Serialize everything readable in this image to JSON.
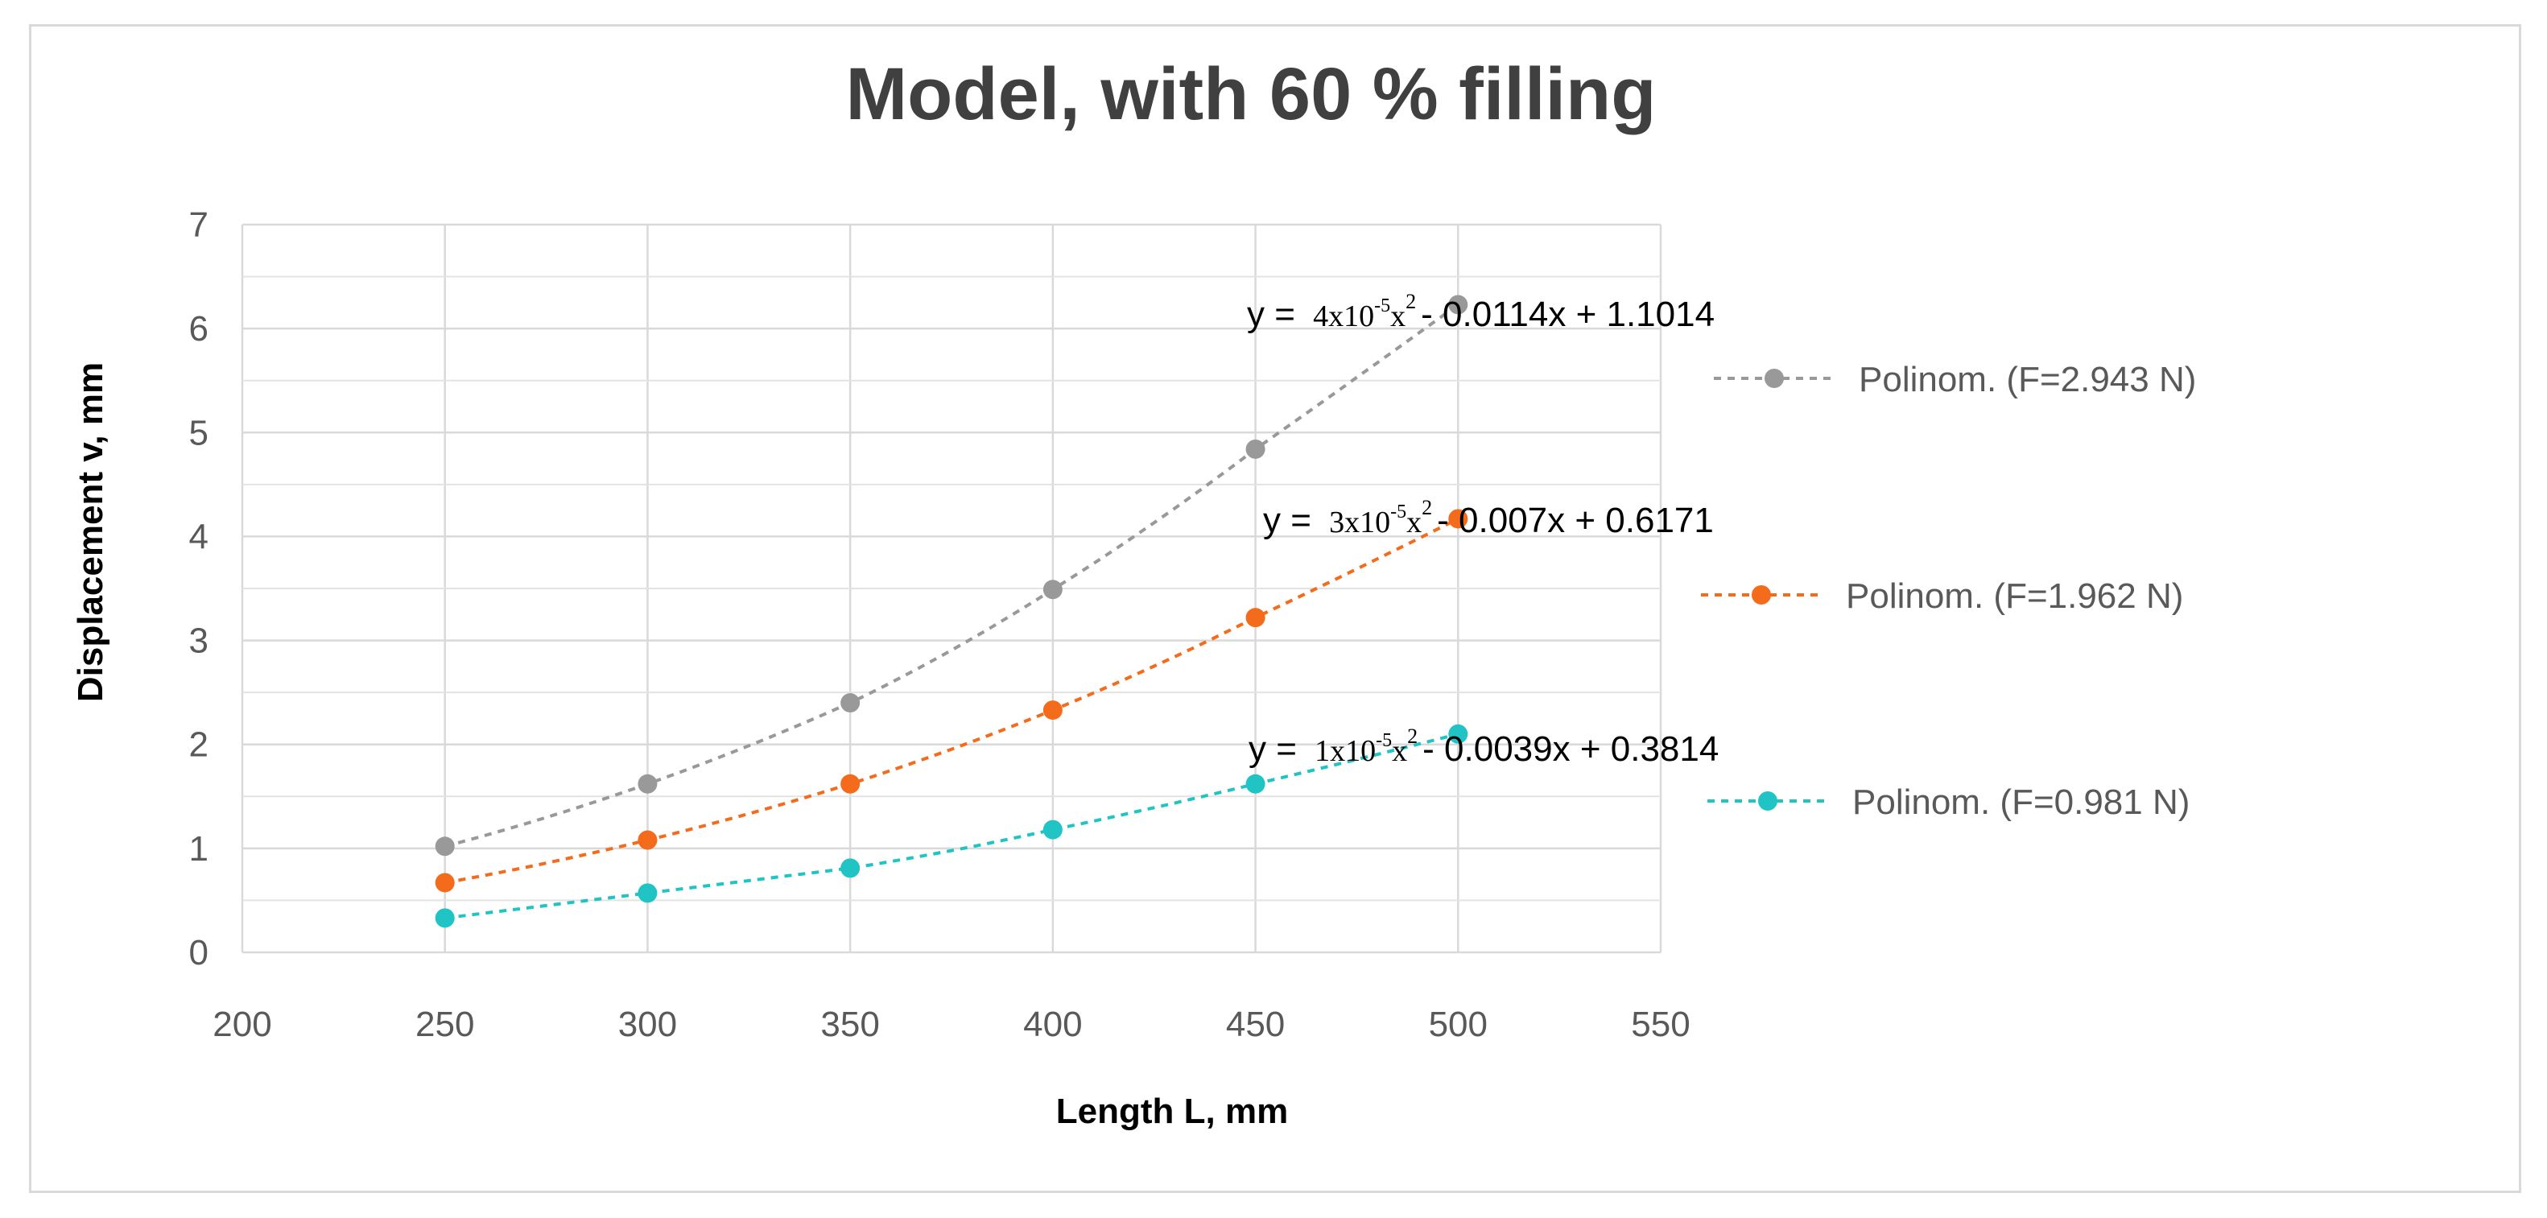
{
  "chart_data": {
    "type": "scatter",
    "title": "Model, with 60 % filling",
    "xlabel": "Length L, mm",
    "ylabel": "Displacement v, mm",
    "xlim": [
      200,
      550
    ],
    "ylim": [
      0,
      7
    ],
    "x_ticks": [
      200,
      250,
      300,
      350,
      400,
      450,
      500,
      550
    ],
    "y_ticks": [
      0,
      1,
      2,
      3,
      4,
      5,
      6,
      7
    ],
    "grid": true,
    "minor_y_grid": true,
    "legend_position": "right",
    "series": [
      {
        "name": "Polinom. (F=2.943 N)",
        "color": "#999999",
        "trendline": "polynomial-2, dotted",
        "x": [
          250,
          300,
          350,
          400,
          450,
          500
        ],
        "y": [
          1.02,
          1.62,
          2.4,
          3.49,
          4.84,
          6.23
        ],
        "fit": {
          "a": 4e-05,
          "b": -0.0114,
          "c": 1.1014
        },
        "equation": {
          "prefix": "y = ",
          "coef": "4x10",
          "exp": "-5",
          "var": "x",
          "var_exp": "2",
          "rest": "- 0.0114x + 1.1014"
        }
      },
      {
        "name": "Polinom. (F=1.962 N)",
        "color": "#f46b1b",
        "trendline": "polynomial-2, dotted",
        "x": [
          250,
          300,
          350,
          400,
          450,
          500
        ],
        "y": [
          0.67,
          1.08,
          1.62,
          2.33,
          3.22,
          4.17
        ],
        "fit": {
          "a": 3e-05,
          "b": -0.007,
          "c": 0.6171
        },
        "equation": {
          "prefix": "y = ",
          "coef": "3x10",
          "exp": "-5",
          "var": "x",
          "var_exp": "2",
          "rest": "- 0.007x + 0.6171"
        }
      },
      {
        "name": "Polinom. (F=0.981 N)",
        "color": "#21c4c4",
        "trendline": "polynomial-2, dotted",
        "x": [
          250,
          300,
          350,
          400,
          450,
          500
        ],
        "y": [
          0.33,
          0.57,
          0.81,
          1.18,
          1.62,
          2.1
        ],
        "fit": {
          "a": 1e-05,
          "b": -0.0039,
          "c": 0.3814
        },
        "equation": {
          "prefix": "y = ",
          "coef": "1x10",
          "exp": "-5",
          "var": "x",
          "var_exp": "2",
          "rest": "- 0.0039x + 0.3814"
        }
      }
    ]
  }
}
